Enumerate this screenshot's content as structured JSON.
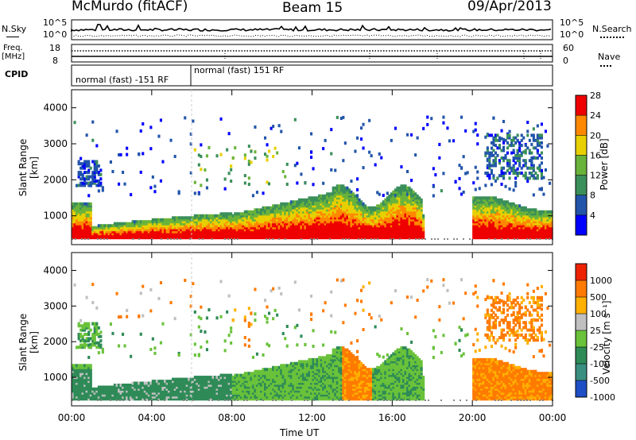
{
  "header": {
    "site": "McMurdo (fitACF)",
    "beam": "Beam 15",
    "date": "09/Apr/2013"
  },
  "panels": {
    "nsky_label": "N.Sky",
    "nsky_ticks": [
      "10^5",
      "10^0"
    ],
    "nsearch_label": "N.Search",
    "nsearch_ticks": [
      "10^5",
      "10^0"
    ],
    "freq_label": "Freq.",
    "freq_unit": "[MHz]",
    "freq_ticks": [
      "18",
      "8"
    ],
    "nave_label": "Nave",
    "nave_ticks": [
      "60",
      "0"
    ],
    "cpid_label": "CPID",
    "cpid_segments": [
      "normal (fast) -151 RF",
      "normal (fast) 151 RF"
    ]
  },
  "chart_data": [
    {
      "type": "heatmap",
      "name": "power",
      "ylabel": "Slant Range [km]",
      "xlabel": "",
      "y_ticks": [
        1000,
        2000,
        3000,
        4000
      ],
      "ylim": [
        200,
        4500
      ],
      "colorbar_label": "Power [dB]",
      "colorbar_ticks": [
        "4",
        "8",
        "12",
        "16",
        "20",
        "24",
        "28"
      ],
      "colors": [
        "#0000ff",
        "#2255aa",
        "#3a8f5a",
        "#6ab33a",
        "#e8d000",
        "#ff8800",
        "#ee0000"
      ]
    },
    {
      "type": "heatmap",
      "name": "velocity",
      "ylabel": "Slant Range [km]",
      "xlabel": "Time UT",
      "y_ticks": [
        1000,
        2000,
        3000,
        4000
      ],
      "ylim": [
        200,
        4500
      ],
      "colorbar_label": "Velocity [m s⁻¹]",
      "colorbar_ticks": [
        "1000",
        "500",
        "100",
        "25",
        "-25",
        "-100",
        "-500",
        "-1000"
      ],
      "colors": [
        "#1e4fc6",
        "#3a8f80",
        "#2e8b57",
        "#6ac23a",
        "#c0c0c0",
        "#ffb000",
        "#ff7a00",
        "#ee2200"
      ]
    }
  ],
  "x_axis": {
    "ticks": [
      "00:00",
      "04:00",
      "08:00",
      "12:00",
      "16:00",
      "20:00",
      "00:00"
    ],
    "label": "Time UT"
  }
}
